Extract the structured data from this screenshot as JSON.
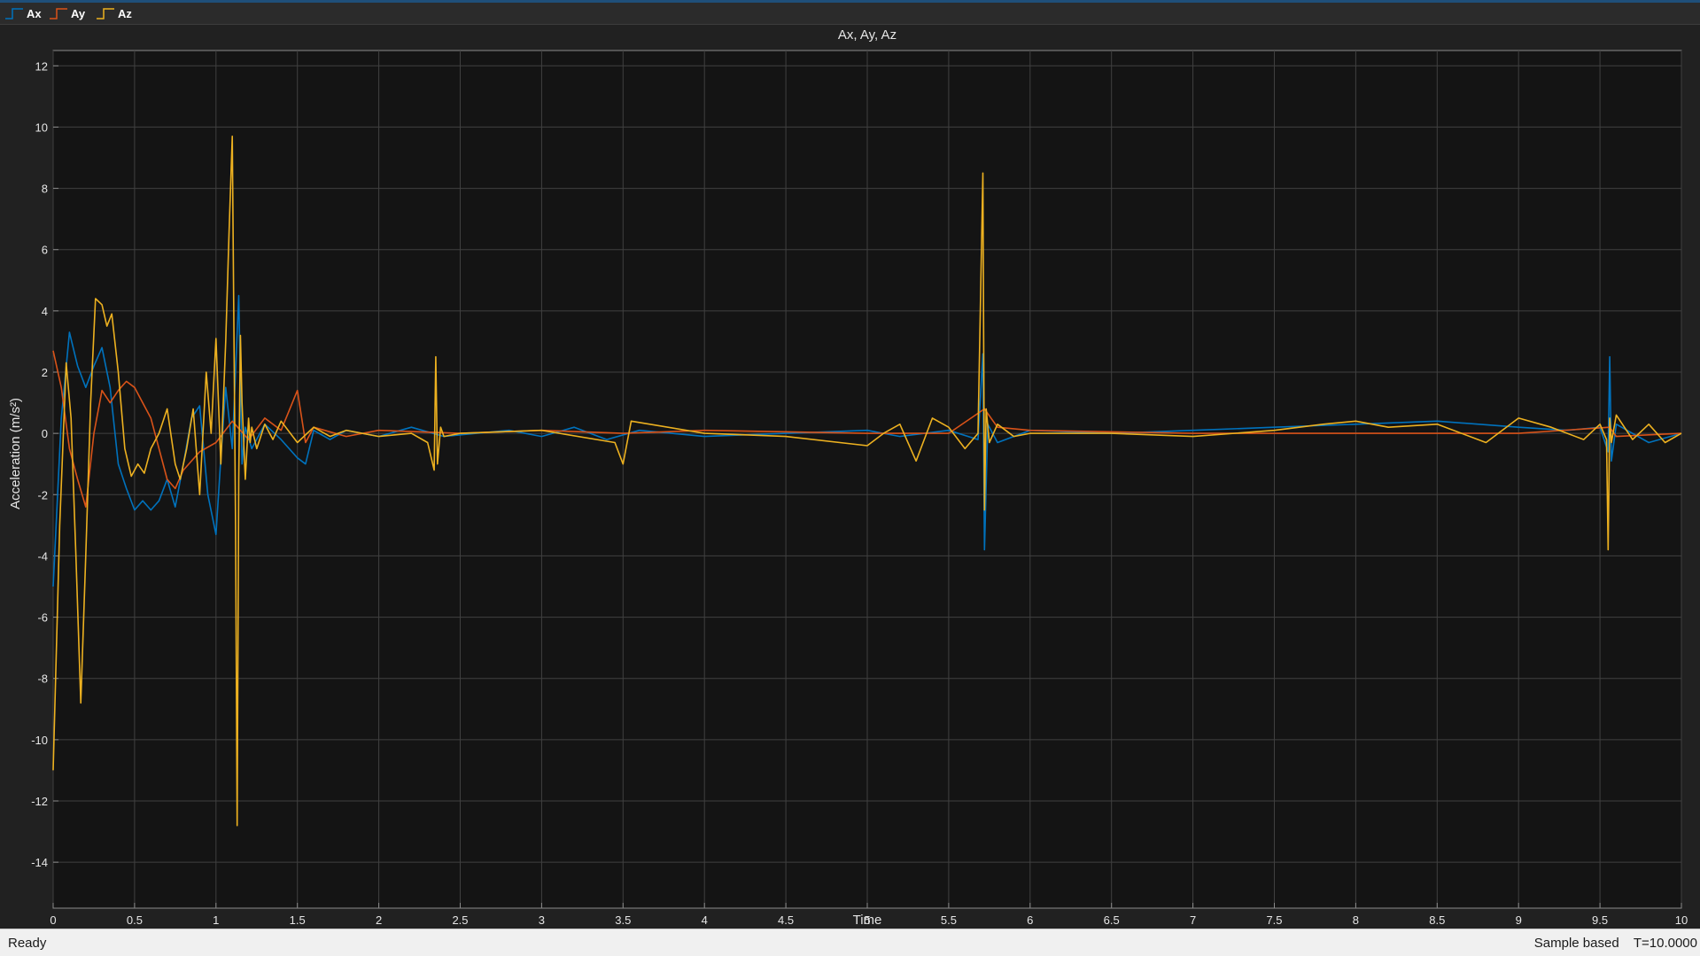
{
  "legend": {
    "items": [
      {
        "label": "Ax",
        "color": "#0072bd"
      },
      {
        "label": "Ay",
        "color": "#d95319"
      },
      {
        "label": "Az",
        "color": "#edb120"
      }
    ]
  },
  "status": {
    "left": "Ready",
    "mode": "Sample based",
    "time": "T=10.0000"
  },
  "chart_data": {
    "type": "line",
    "title": "Ax, Ay, Az",
    "xlabel": "Time",
    "ylabel": "Acceleration  (m/s²)",
    "xlim": [
      0,
      10
    ],
    "ylim": [
      -15.5,
      12.5
    ],
    "grid": true,
    "xticks": [
      "0",
      "0.5",
      "1",
      "1.5",
      "2",
      "2.5",
      "3",
      "3.5",
      "4",
      "4.5",
      "5",
      "5.5",
      "6",
      "6.5",
      "7",
      "7.5",
      "8",
      "8.5",
      "9",
      "9.5",
      "10"
    ],
    "yticks": [
      "12",
      "10",
      "8",
      "6",
      "4",
      "2",
      "0",
      "-2",
      "-4",
      "-6",
      "-8",
      "-10",
      "-12",
      "-14"
    ],
    "series": [
      {
        "name": "Ax",
        "color": "#0072bd",
        "x": [
          0,
          0.05,
          0.1,
          0.15,
          0.2,
          0.25,
          0.3,
          0.35,
          0.4,
          0.45,
          0.5,
          0.55,
          0.6,
          0.65,
          0.7,
          0.75,
          0.8,
          0.85,
          0.9,
          0.95,
          1.0,
          1.03,
          1.06,
          1.1,
          1.14,
          1.16,
          1.18,
          1.22,
          1.3,
          1.4,
          1.5,
          1.55,
          1.6,
          1.7,
          1.8,
          2.0,
          2.2,
          2.4,
          2.6,
          2.8,
          3.0,
          3.2,
          3.4,
          3.6,
          3.8,
          4.0,
          4.5,
          5.0,
          5.2,
          5.5,
          5.68,
          5.71,
          5.72,
          5.74,
          5.8,
          6.0,
          6.5,
          7.0,
          7.5,
          8.0,
          8.5,
          9.0,
          9.3,
          9.5,
          9.55,
          9.56,
          9.57,
          9.6,
          9.8,
          10.0
        ],
        "values": [
          -5,
          0.5,
          3.3,
          2.2,
          1.5,
          2.2,
          2.8,
          1.5,
          -1.0,
          -1.8,
          -2.5,
          -2.2,
          -2.5,
          -2.2,
          -1.5,
          -2.4,
          -1.0,
          0.5,
          0.9,
          -2.0,
          -3.3,
          -0.8,
          1.5,
          -0.5,
          4.5,
          -1.0,
          0.2,
          -0.5,
          0.3,
          -0.2,
          -0.8,
          -1.0,
          0.1,
          -0.2,
          0.1,
          -0.1,
          0.2,
          -0.1,
          0.0,
          0.1,
          -0.1,
          0.2,
          -0.2,
          0.1,
          0.0,
          -0.1,
          0.0,
          0.1,
          -0.1,
          0.1,
          -0.2,
          2.6,
          -3.8,
          0.3,
          -0.3,
          0.1,
          0.0,
          0.1,
          0.2,
          0.3,
          0.4,
          0.2,
          0.1,
          0.2,
          -0.6,
          2.5,
          -0.9,
          0.3,
          -0.3,
          0.0
        ]
      },
      {
        "name": "Ay",
        "color": "#d95319",
        "x": [
          0,
          0.05,
          0.1,
          0.15,
          0.2,
          0.25,
          0.3,
          0.35,
          0.4,
          0.45,
          0.5,
          0.55,
          0.6,
          0.65,
          0.7,
          0.75,
          0.8,
          0.9,
          1.0,
          1.1,
          1.2,
          1.3,
          1.4,
          1.5,
          1.55,
          1.6,
          1.8,
          2.0,
          2.5,
          3.0,
          3.5,
          4.0,
          5.0,
          5.5,
          5.72,
          5.8,
          6.0,
          7.0,
          8.0,
          9.0,
          9.56,
          9.6,
          10.0
        ],
        "values": [
          2.7,
          1.5,
          -0.5,
          -1.5,
          -2.4,
          0.0,
          1.4,
          1.0,
          1.4,
          1.7,
          1.5,
          1.0,
          0.5,
          -0.5,
          -1.5,
          -1.8,
          -1.2,
          -0.6,
          -0.3,
          0.4,
          -0.2,
          0.5,
          0.1,
          1.4,
          -0.3,
          0.2,
          -0.1,
          0.1,
          0.0,
          0.1,
          0.0,
          0.1,
          0.0,
          0.0,
          0.8,
          0.2,
          0.1,
          0.0,
          0.0,
          0.0,
          0.2,
          -0.1,
          0.0
        ]
      },
      {
        "name": "Az",
        "color": "#edb120",
        "x": [
          0,
          0.04,
          0.08,
          0.11,
          0.14,
          0.17,
          0.2,
          0.23,
          0.26,
          0.3,
          0.33,
          0.36,
          0.4,
          0.44,
          0.48,
          0.52,
          0.56,
          0.6,
          0.65,
          0.7,
          0.75,
          0.78,
          0.82,
          0.86,
          0.9,
          0.94,
          0.97,
          1.0,
          1.03,
          1.06,
          1.08,
          1.1,
          1.12,
          1.13,
          1.14,
          1.15,
          1.16,
          1.18,
          1.2,
          1.21,
          1.22,
          1.25,
          1.3,
          1.35,
          1.4,
          1.5,
          1.6,
          1.7,
          1.8,
          2.0,
          2.2,
          2.3,
          2.34,
          2.35,
          2.36,
          2.38,
          2.4,
          2.5,
          3.0,
          3.45,
          3.5,
          3.55,
          4.0,
          4.5,
          5.0,
          5.1,
          5.2,
          5.3,
          5.4,
          5.5,
          5.6,
          5.68,
          5.71,
          5.72,
          5.73,
          5.75,
          5.8,
          5.9,
          6.0,
          6.5,
          7.0,
          7.5,
          7.8,
          8.0,
          8.2,
          8.5,
          8.8,
          9.0,
          9.2,
          9.4,
          9.5,
          9.54,
          9.55,
          9.56,
          9.57,
          9.6,
          9.7,
          9.8,
          9.9,
          10.0
        ],
        "values": [
          -11,
          -3,
          2.3,
          0.5,
          -4.0,
          -8.8,
          -4.0,
          1.0,
          4.4,
          4.2,
          3.5,
          3.9,
          2.0,
          -0.5,
          -1.4,
          -1.0,
          -1.3,
          -0.5,
          0.0,
          0.8,
          -1.0,
          -1.5,
          -0.5,
          0.8,
          -2.0,
          2.0,
          0.0,
          3.1,
          -1.0,
          3.0,
          6.5,
          9.7,
          -3.0,
          -12.8,
          -1.5,
          3.2,
          1.0,
          -1.5,
          0.5,
          -0.3,
          0.2,
          -0.5,
          0.3,
          -0.2,
          0.4,
          -0.3,
          0.2,
          -0.1,
          0.1,
          -0.1,
          0.0,
          -0.3,
          -1.2,
          2.5,
          -1.0,
          0.2,
          -0.1,
          0.0,
          0.1,
          -0.3,
          -1.0,
          0.4,
          0.0,
          -0.1,
          -0.4,
          0.0,
          0.3,
          -0.9,
          0.5,
          0.2,
          -0.5,
          0.0,
          8.5,
          -2.5,
          0.8,
          -0.3,
          0.3,
          -0.1,
          0.0,
          0.0,
          -0.1,
          0.1,
          0.3,
          0.4,
          0.2,
          0.3,
          -0.3,
          0.5,
          0.2,
          -0.2,
          0.3,
          -0.2,
          -3.8,
          0.5,
          -0.3,
          0.6,
          -0.2,
          0.3,
          -0.3,
          0.0
        ]
      }
    ]
  }
}
